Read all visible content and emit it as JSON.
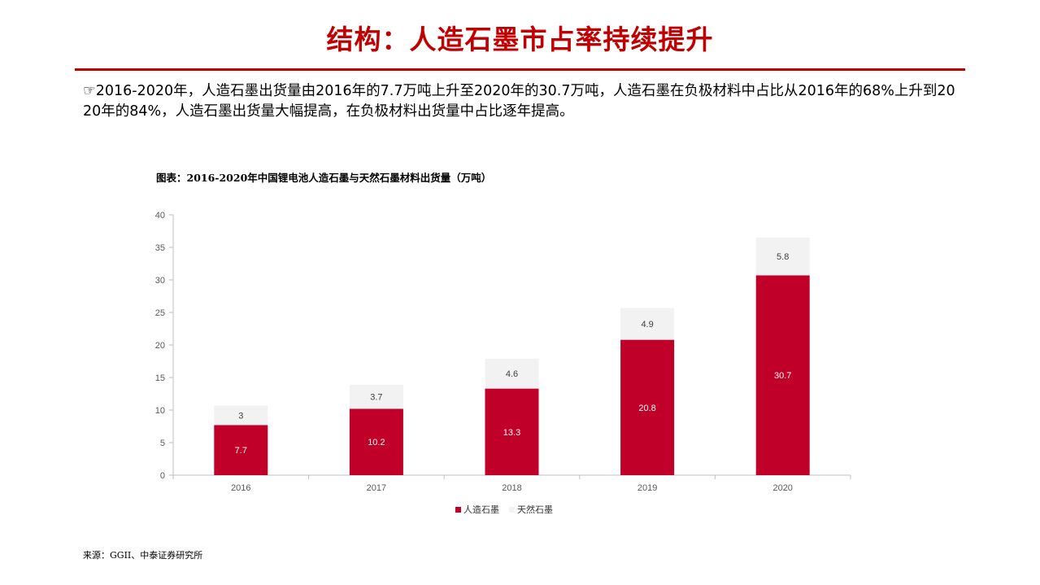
{
  "header": {
    "title": "结构：人造石墨市占率持续提升"
  },
  "intro": {
    "bullet": "☞",
    "text": "2016-2020年，人造石墨出货量由2016年的7.7万吨上升至2020年的30.7万吨，人造石墨在负极材料中占比从2016年的68%上升到2020年的84%，人造石墨出货量大幅提高，在负极材料出货量中占比逐年提高。"
  },
  "colors": {
    "accent": "#c00000",
    "artificial_graphite": "#c00028",
    "natural_graphite": "#f2f2f2"
  },
  "chart_data": {
    "type": "bar",
    "stacked": true,
    "title": "图表：2016-2020年中国锂电池人造石墨与天然石墨材料出货量（万吨）",
    "categories": [
      "2016",
      "2017",
      "2018",
      "2019",
      "2020"
    ],
    "series": [
      {
        "name": "人造石墨",
        "values": [
          7.7,
          10.2,
          13.3,
          20.8,
          30.7
        ],
        "color": "#c00028"
      },
      {
        "name": "天然石墨",
        "values": [
          3,
          3.7,
          4.6,
          4.9,
          5.8
        ],
        "color": "#f2f2f2"
      }
    ],
    "ylim": [
      0,
      40
    ],
    "yticks": [
      0,
      5,
      10,
      15,
      20,
      25,
      30,
      35,
      40
    ],
    "legend": "bottom",
    "grid": false,
    "data_labels": true
  },
  "source": "来源：GGII、中泰证券研究所"
}
